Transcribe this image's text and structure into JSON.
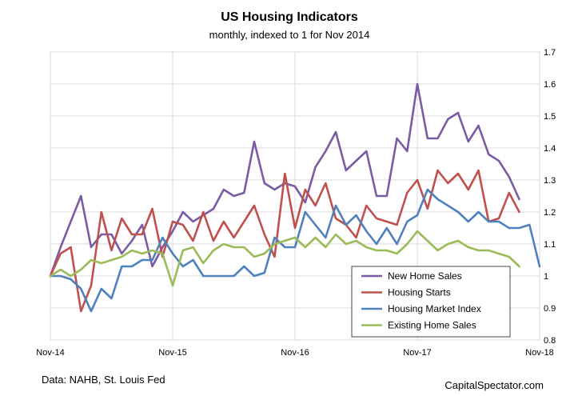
{
  "chart_data": {
    "type": "line",
    "title": "US Housing Indicators",
    "subtitle": "monthly,  indexed to 1 for Nov 2014",
    "ylim": [
      0.8,
      1.7
    ],
    "y_ticks": [
      "0.8",
      "0.9",
      "1",
      "1.1",
      "1.2",
      "1.3",
      "1.4",
      "1.5",
      "1.6",
      "1.7"
    ],
    "y_tick_values": [
      0.8,
      0.9,
      1.0,
      1.1,
      1.2,
      1.3,
      1.4,
      1.5,
      1.6,
      1.7
    ],
    "x_ticks": [
      "Nov-14",
      "Nov-15",
      "Nov-16",
      "Nov-17",
      "Nov-18"
    ],
    "x_tick_index": [
      0,
      12,
      24,
      36,
      48
    ],
    "x_range": [
      0,
      48
    ],
    "grid": "both",
    "legend_position": "lower-right",
    "source": "Data: NAHB, St. Louis Fed",
    "brand": "CapitalSpectator.com",
    "series": [
      {
        "name": "New Home Sales",
        "color": "#7b5ba3",
        "values": [
          1.0,
          1.09,
          1.17,
          1.25,
          1.09,
          1.13,
          1.13,
          1.07,
          1.11,
          1.16,
          1.03,
          1.09,
          1.14,
          1.2,
          1.17,
          1.19,
          1.21,
          1.27,
          1.25,
          1.26,
          1.42,
          1.29,
          1.27,
          1.29,
          1.28,
          1.23,
          1.34,
          1.39,
          1.45,
          1.33,
          1.36,
          1.39,
          1.25,
          1.25,
          1.43,
          1.39,
          1.6,
          1.43,
          1.43,
          1.49,
          1.51,
          1.42,
          1.47,
          1.38,
          1.36,
          1.31,
          1.24
        ]
      },
      {
        "name": "Housing Starts",
        "color": "#c0504d",
        "values": [
          1.0,
          1.07,
          1.09,
          0.89,
          0.97,
          1.2,
          1.08,
          1.18,
          1.13,
          1.13,
          1.21,
          1.06,
          1.17,
          1.16,
          1.11,
          1.2,
          1.11,
          1.17,
          1.12,
          1.17,
          1.22,
          1.13,
          1.06,
          1.32,
          1.15,
          1.27,
          1.22,
          1.29,
          1.18,
          1.16,
          1.12,
          1.22,
          1.18,
          1.17,
          1.16,
          1.26,
          1.3,
          1.21,
          1.33,
          1.29,
          1.32,
          1.27,
          1.33,
          1.17,
          1.18,
          1.26,
          1.2
        ]
      },
      {
        "name": "Housing Market Index",
        "color": "#4f81bd",
        "values": [
          1.0,
          1.0,
          0.99,
          0.96,
          0.89,
          0.96,
          0.93,
          1.03,
          1.03,
          1.05,
          1.05,
          1.12,
          1.07,
          1.03,
          1.05,
          1.0,
          1.0,
          1.0,
          1.0,
          1.03,
          1.0,
          1.01,
          1.12,
          1.09,
          1.09,
          1.2,
          1.16,
          1.12,
          1.22,
          1.16,
          1.19,
          1.14,
          1.1,
          1.15,
          1.1,
          1.17,
          1.19,
          1.27,
          1.24,
          1.22,
          1.2,
          1.17,
          1.2,
          1.17,
          1.17,
          1.15,
          1.15,
          1.16,
          1.03
        ]
      },
      {
        "name": "Existing Home Sales",
        "color": "#9bbb59",
        "values": [
          1.0,
          1.02,
          1.0,
          1.02,
          1.05,
          1.04,
          1.05,
          1.06,
          1.08,
          1.07,
          1.08,
          1.07,
          0.97,
          1.08,
          1.09,
          1.04,
          1.08,
          1.1,
          1.09,
          1.09,
          1.06,
          1.07,
          1.1,
          1.11,
          1.12,
          1.09,
          1.12,
          1.09,
          1.13,
          1.1,
          1.11,
          1.09,
          1.08,
          1.08,
          1.07,
          1.1,
          1.14,
          1.11,
          1.08,
          1.1,
          1.11,
          1.09,
          1.08,
          1.08,
          1.07,
          1.06,
          1.03
        ]
      }
    ]
  }
}
